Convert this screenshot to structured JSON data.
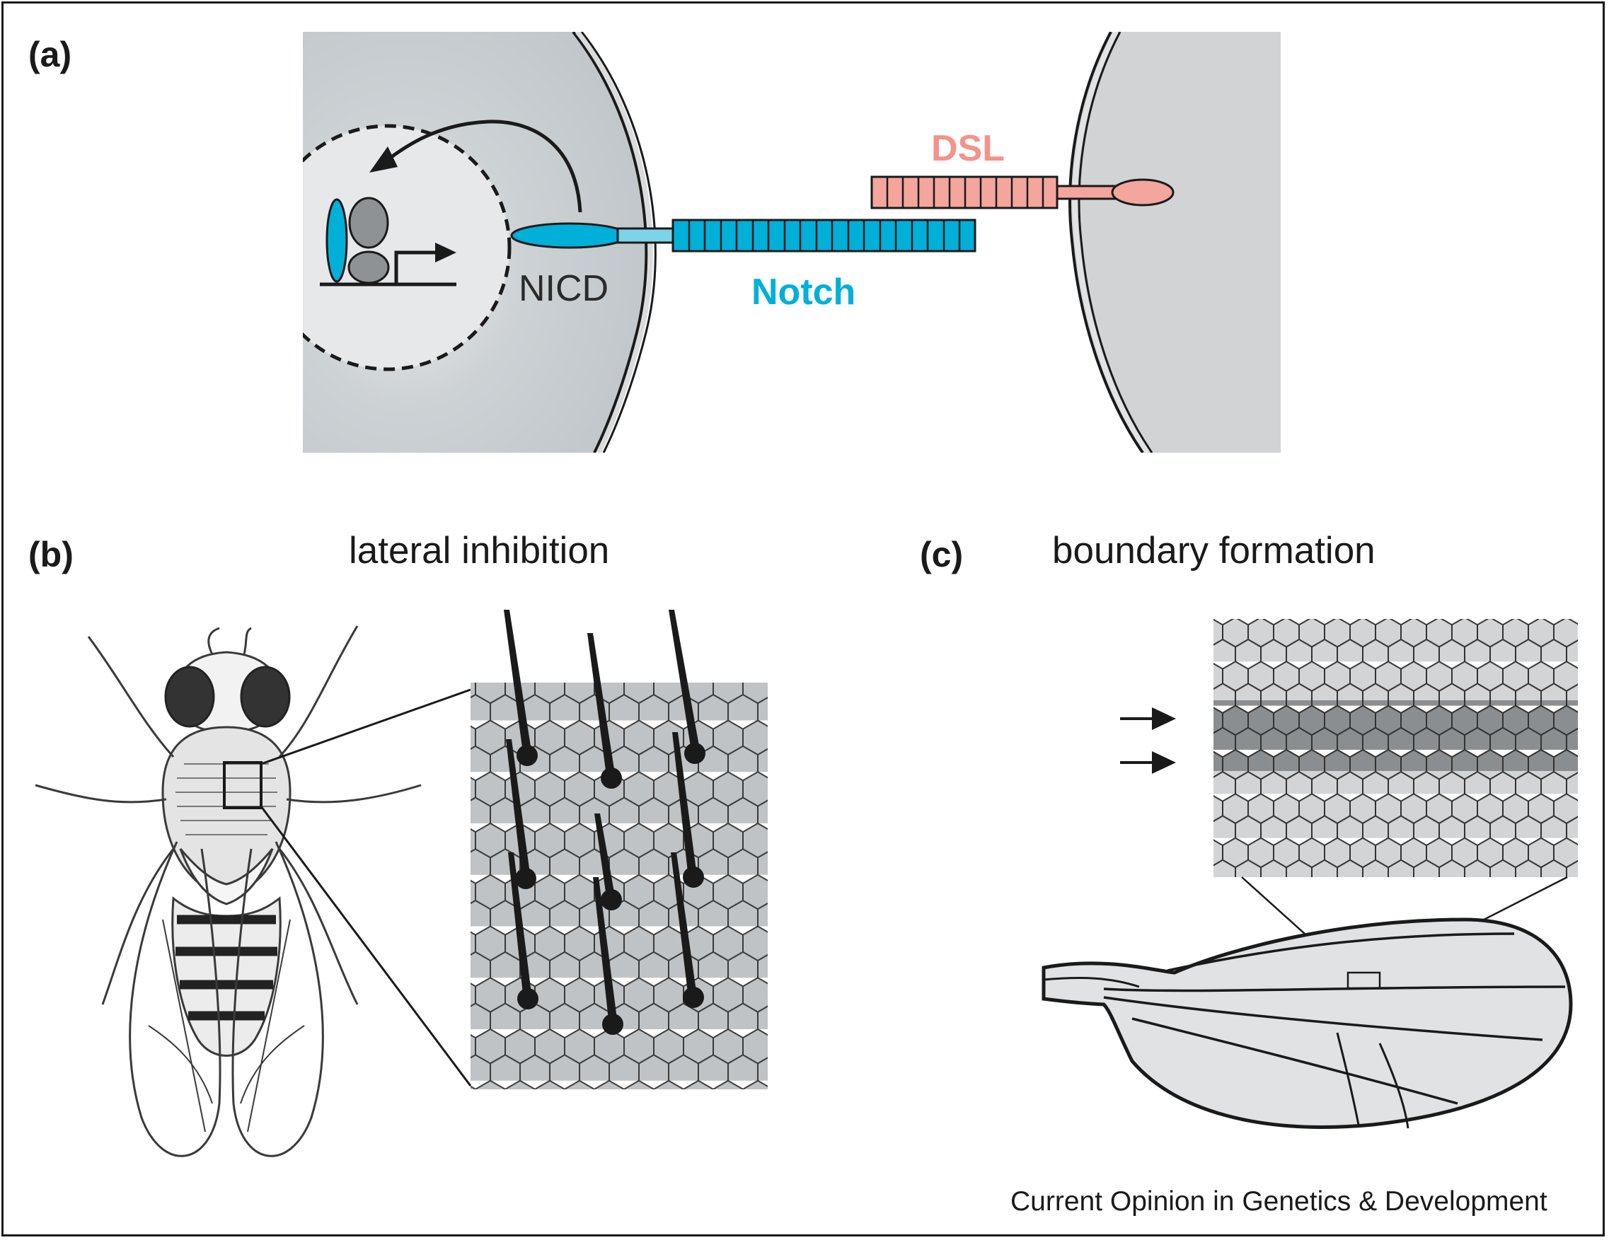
{
  "panels": {
    "a": {
      "label": "(a)",
      "labels": {
        "nicd": "NICD",
        "notch": "Notch",
        "dsl": "DSL"
      },
      "colors": {
        "notch": "#00b0d8",
        "dsl": "#f4938a",
        "cell_left": "#c5cacd",
        "cell_right": "#d1d3d4",
        "nucleus": "#e4e6e7"
      }
    },
    "b": {
      "label": "(b)",
      "title": "lateral inhibition"
    },
    "c": {
      "label": "(c)",
      "title": "boundary formation"
    }
  },
  "footer": {
    "credit": "Current Opinion in Genetics & Development"
  }
}
